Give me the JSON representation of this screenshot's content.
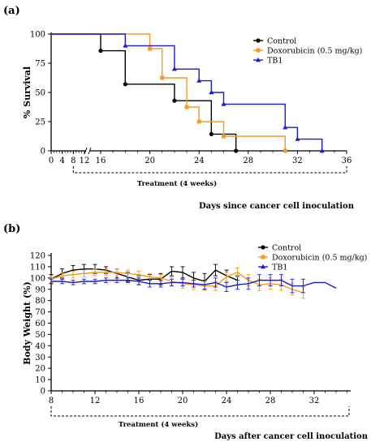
{
  "chart_data": [
    {
      "panel_label": "(a)",
      "type": "line",
      "step": true,
      "ylabel": "% Survival",
      "xlabel": "Days since cancer cell inoculation",
      "treatment_label": "Treatment (4 weeks)",
      "xticks": [
        "0",
        "4",
        "8",
        "12",
        "16",
        "20",
        "24",
        "28",
        "32",
        "36"
      ],
      "yticks": [
        "0",
        "25",
        "50",
        "75",
        "100"
      ],
      "ylim": [
        0,
        100
      ],
      "legend_position": "top-right",
      "series": [
        {
          "name": "Control",
          "color": "#000000",
          "marker": "circle",
          "points": [
            [
              0,
              100
            ],
            [
              16,
              100
            ],
            [
              16,
              85.7
            ],
            [
              18,
              85.7
            ],
            [
              18,
              57.1
            ],
            [
              22,
              57.1
            ],
            [
              22,
              42.9
            ],
            [
              25,
              42.9
            ],
            [
              25,
              14.3
            ],
            [
              27,
              14.3
            ],
            [
              27,
              0
            ]
          ],
          "markers": [
            [
              16,
              85.7
            ],
            [
              18,
              57.1
            ],
            [
              22,
              42.9
            ],
            [
              25,
              14.3
            ],
            [
              27,
              0
            ]
          ]
        },
        {
          "name": "Doxorubicin (0.5 mg/kg)",
          "color": "#f59a23",
          "marker": "square",
          "points": [
            [
              0,
              100
            ],
            [
              20,
              100
            ],
            [
              20,
              87.5
            ],
            [
              21,
              87.5
            ],
            [
              21,
              62.5
            ],
            [
              23,
              62.5
            ],
            [
              23,
              37.5
            ],
            [
              24,
              37.5
            ],
            [
              24,
              25
            ],
            [
              26,
              25
            ],
            [
              26,
              12.5
            ],
            [
              31,
              12.5
            ],
            [
              31,
              0
            ]
          ],
          "markers": [
            [
              20,
              87.5
            ],
            [
              21,
              62.5
            ],
            [
              23,
              37.5
            ],
            [
              24,
              25
            ],
            [
              26,
              12.5
            ],
            [
              31,
              0
            ]
          ]
        },
        {
          "name": "TB1",
          "color": "#1a1ad6",
          "marker": "triangle",
          "points": [
            [
              0,
              100
            ],
            [
              18,
              100
            ],
            [
              18,
              90
            ],
            [
              22,
              90
            ],
            [
              22,
              70
            ],
            [
              24,
              70
            ],
            [
              24,
              60
            ],
            [
              25,
              60
            ],
            [
              25,
              50
            ],
            [
              26,
              50
            ],
            [
              26,
              40
            ],
            [
              31,
              40
            ],
            [
              31,
              20
            ],
            [
              32,
              20
            ],
            [
              32,
              10
            ],
            [
              34,
              10
            ],
            [
              34,
              0
            ]
          ],
          "markers": [
            [
              18,
              90
            ],
            [
              22,
              70
            ],
            [
              24,
              60
            ],
            [
              25,
              50
            ],
            [
              26,
              40
            ],
            [
              31,
              20
            ],
            [
              32,
              10
            ],
            [
              34,
              0
            ]
          ]
        }
      ]
    },
    {
      "panel_label": "(b)",
      "type": "line",
      "ylabel": "Body Weight (%)",
      "xlabel": "Days after cancer cell inoculation",
      "treatment_label": "Treatment (4 weeks)",
      "xticks": [
        "8",
        "12",
        "16",
        "20",
        "24",
        "28",
        "32"
      ],
      "yticks": [
        "0",
        "10",
        "20",
        "30",
        "40",
        "50",
        "60",
        "70",
        "80",
        "90",
        "100",
        "110",
        "120"
      ],
      "ylim": [
        0,
        120
      ],
      "legend_position": "top-right",
      "series": [
        {
          "name": "Control",
          "color": "#000000",
          "marker": "circle",
          "points": [
            [
              8,
              99
            ],
            [
              9,
              104
            ],
            [
              10,
              107
            ],
            [
              11,
              108
            ],
            [
              12,
              108
            ],
            [
              13,
              107
            ],
            [
              14,
              104
            ],
            [
              15,
              101
            ],
            [
              16,
              98
            ],
            [
              17,
              99
            ],
            [
              18,
              99
            ],
            [
              19,
              106
            ],
            [
              20,
              105
            ],
            [
              21,
              100
            ],
            [
              22,
              97
            ],
            [
              23,
              107
            ],
            [
              24,
              102
            ],
            [
              25,
              98
            ]
          ],
          "errors": [
            4,
            4,
            4,
            4,
            4,
            3,
            4,
            4,
            4,
            4,
            5,
            4,
            5,
            5,
            7,
            5,
            5,
            4
          ]
        },
        {
          "name": "Doxorubicin (0.5 mg/kg)",
          "color": "#f59a23",
          "marker": "square",
          "points": [
            [
              8,
              99
            ],
            [
              9,
              102
            ],
            [
              10,
              103
            ],
            [
              11,
              104
            ],
            [
              12,
              105
            ],
            [
              13,
              105
            ],
            [
              14,
              105
            ],
            [
              15,
              104
            ],
            [
              16,
              103
            ],
            [
              17,
              101
            ],
            [
              18,
              100
            ],
            [
              19,
              97
            ],
            [
              20,
              95
            ],
            [
              21,
              94
            ],
            [
              22,
              93
            ],
            [
              23,
              93
            ],
            [
              24,
              101
            ],
            [
              25,
              105
            ],
            [
              26,
              98
            ],
            [
              27,
              94
            ],
            [
              28,
              95
            ],
            [
              29,
              94
            ],
            [
              30,
              90
            ],
            [
              31,
              87
            ]
          ],
          "errors": [
            3,
            3,
            3,
            3,
            3,
            3,
            3,
            3,
            3,
            3,
            3,
            4,
            4,
            4,
            4,
            4,
            4,
            4,
            5,
            5,
            5,
            5,
            5,
            5
          ]
        },
        {
          "name": "TB1",
          "color": "#1a1ad6",
          "marker": "triangle",
          "points": [
            [
              8,
              97
            ],
            [
              9,
              97
            ],
            [
              10,
              96
            ],
            [
              11,
              97
            ],
            [
              12,
              97
            ],
            [
              13,
              98
            ],
            [
              14,
              98
            ],
            [
              15,
              98
            ],
            [
              16,
              97
            ],
            [
              17,
              95
            ],
            [
              18,
              95
            ],
            [
              19,
              96
            ],
            [
              20,
              96
            ],
            [
              21,
              95
            ],
            [
              22,
              94
            ],
            [
              23,
              96
            ],
            [
              24,
              92
            ],
            [
              25,
              94
            ],
            [
              26,
              95
            ],
            [
              27,
              98
            ],
            [
              28,
              98
            ],
            [
              29,
              98
            ],
            [
              30,
              93
            ],
            [
              31,
              93
            ],
            [
              32,
              96
            ],
            [
              33,
              96
            ],
            [
              34,
              91
            ]
          ],
          "errors": [
            2,
            2,
            2,
            2,
            2,
            2,
            2,
            2,
            3,
            3,
            3,
            3,
            3,
            3,
            4,
            4,
            4,
            4,
            5,
            5,
            5,
            5,
            6,
            6,
            0,
            0,
            0
          ]
        }
      ]
    }
  ]
}
